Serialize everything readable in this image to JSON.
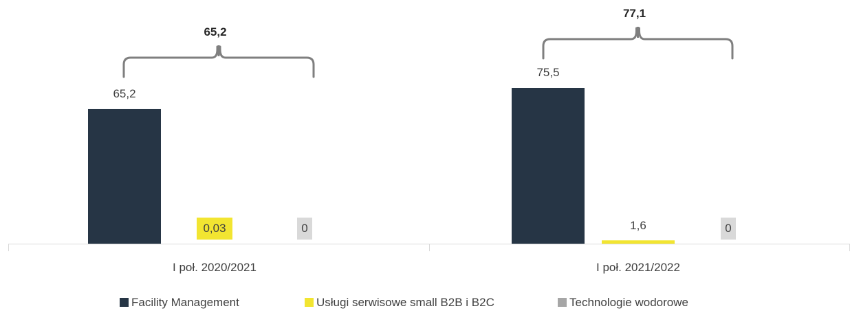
{
  "chart_data": {
    "type": "bar",
    "categories": [
      "I poł. 2020/2021",
      "I poł. 2021/2022"
    ],
    "series": [
      {
        "name": "Facility Management",
        "values": [
          65.2,
          75.5
        ],
        "labels": [
          "65,2",
          "75,5"
        ],
        "color": "#263545"
      },
      {
        "name": "Usługi serwisowe small B2B i B2C",
        "values": [
          0.03,
          1.6
        ],
        "labels": [
          "0,03",
          "1,6"
        ],
        "color": "#f2e531"
      },
      {
        "name": "Technologie wodorowe",
        "values": [
          0,
          0
        ],
        "labels": [
          "0",
          "0"
        ],
        "color": "#a6a6a6"
      }
    ],
    "totals": [
      "65,2",
      "77,1"
    ],
    "title": "",
    "xlabel": "",
    "ylabel": "",
    "ylim": [
      0,
      75.5
    ],
    "grid": false,
    "legend": "bottom",
    "label_badge_colors": {
      "yellow": "#f2e531",
      "gray": "#d9d9d9"
    },
    "bracket_color": "#7f7f7f"
  }
}
